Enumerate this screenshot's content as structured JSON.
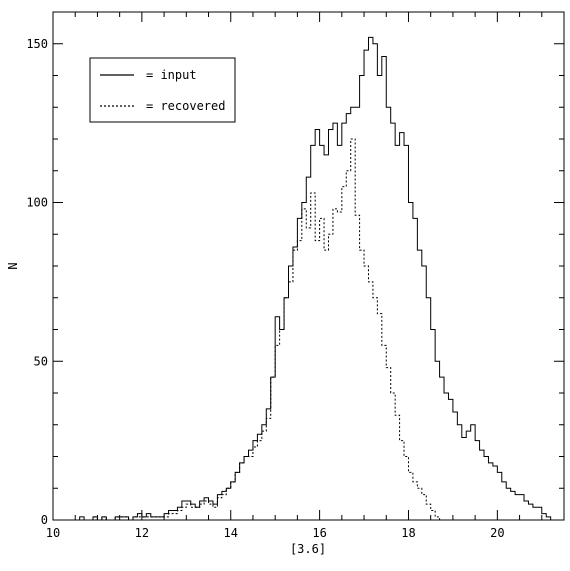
{
  "chart_data": {
    "type": "line",
    "title": "",
    "xlabel": "[3.6]",
    "ylabel": "N",
    "xlim": [
      10,
      21.5
    ],
    "ylim": [
      0,
      160
    ],
    "xticks": [
      10,
      12,
      14,
      16,
      18,
      20
    ],
    "yticks": [
      0,
      50,
      100,
      150
    ],
    "xtick_labels": [
      "10",
      "12",
      "14",
      "16",
      "18",
      "20"
    ],
    "ytick_labels": [
      "0",
      "50",
      "100",
      "150"
    ],
    "grid": false,
    "legend_position": "top-left",
    "legend": [
      {
        "label": "= input",
        "style": "solid"
      },
      {
        "label": "= recovered",
        "style": "dashed"
      }
    ],
    "bin_width": 0.1,
    "series": [
      {
        "name": "= input",
        "x_start": 10.0,
        "values": [
          0,
          0,
          0,
          0,
          0,
          0,
          1,
          0,
          0,
          1,
          0,
          1,
          0,
          0,
          1,
          1,
          1,
          0,
          1,
          2,
          1,
          2,
          1,
          1,
          1,
          2,
          3,
          3,
          4,
          6,
          6,
          5,
          4,
          6,
          7,
          6,
          5,
          8,
          9,
          10,
          12,
          15,
          18,
          20,
          22,
          25,
          27,
          30,
          35,
          45,
          64,
          60,
          70,
          80,
          86,
          95,
          100,
          108,
          118,
          123,
          118,
          115,
          123,
          125,
          118,
          125,
          128,
          130,
          130,
          140,
          148,
          152,
          150,
          140,
          146,
          130,
          125,
          118,
          122,
          118,
          100,
          95,
          85,
          80,
          70,
          60,
          50,
          45,
          40,
          38,
          34,
          30,
          26,
          28,
          30,
          25,
          22,
          20,
          18,
          17,
          15,
          12,
          10,
          9,
          8,
          8,
          6,
          5,
          4,
          4,
          2,
          1,
          0
        ]
      },
      {
        "name": "= recovered",
        "x_start": 10.0,
        "values": [
          0,
          0,
          0,
          0,
          0,
          0,
          0,
          0,
          0,
          1,
          0,
          1,
          0,
          0,
          1,
          1,
          1,
          0,
          1,
          1,
          1,
          1,
          1,
          1,
          1,
          1,
          2,
          2,
          3,
          4,
          5,
          4,
          4,
          5,
          6,
          5,
          4,
          7,
          8,
          10,
          12,
          15,
          18,
          20,
          20,
          23,
          25,
          28,
          32,
          45,
          55,
          60,
          70,
          75,
          85,
          88,
          98,
          92,
          103,
          88,
          95,
          85,
          90,
          98,
          97,
          105,
          110,
          120,
          96,
          85,
          80,
          75,
          70,
          65,
          55,
          48,
          40,
          33,
          25,
          20,
          15,
          12,
          10,
          8,
          5,
          3,
          1,
          0,
          0,
          0,
          0,
          0,
          0,
          0,
          0,
          0,
          0,
          0,
          0,
          0,
          0,
          0,
          0,
          0,
          0,
          0,
          0,
          0,
          0,
          0,
          0,
          0,
          0
        ]
      }
    ]
  }
}
